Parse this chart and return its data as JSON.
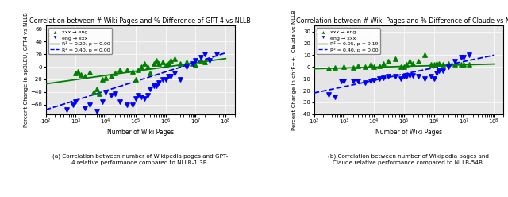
{
  "left": {
    "title": "Correlation between # Wiki Pages and % Difference of GPT-4 vs NLLB",
    "ylabel": "Percent Change in spBLEU, GPT4 vs NLLB",
    "xlabel": "Number of Wiki Pages",
    "caption_left": "(a) Correlation between number of Wikipedia pages and GPT-\n4 relative performance compared to NLLB-1.3B.",
    "xxx_eng_x": [
      1000,
      1200,
      1500,
      2000,
      3000,
      4000,
      5000,
      6000,
      8000,
      10000,
      15000,
      20000,
      30000,
      50000,
      80000,
      100000,
      120000,
      150000,
      200000,
      250000,
      300000,
      400000,
      500000,
      600000,
      800000,
      1000000,
      1200000,
      1500000,
      2000000,
      3000000,
      5000000,
      8000000,
      10000000,
      15000000,
      20000000
    ],
    "xxx_eng_y": [
      -10,
      -8,
      -12,
      -15,
      -9,
      -40,
      -35,
      -42,
      -20,
      -18,
      -15,
      -10,
      -5,
      -5,
      -8,
      -20,
      -5,
      0,
      5,
      0,
      -10,
      5,
      10,
      5,
      8,
      3,
      5,
      10,
      12,
      5,
      8,
      5,
      3,
      10,
      8
    ],
    "eng_xxx_x": [
      500,
      800,
      1000,
      2000,
      3000,
      5000,
      8000,
      10000,
      15000,
      20000,
      30000,
      50000,
      80000,
      100000,
      120000,
      150000,
      200000,
      250000,
      300000,
      400000,
      500000,
      600000,
      800000,
      1000000,
      1200000,
      1500000,
      2000000,
      3000000,
      5000000,
      8000000,
      10000000,
      15000000,
      20000000,
      30000000,
      50000000
    ],
    "eng_xxx_y": [
      -68,
      -60,
      -55,
      -65,
      -60,
      -70,
      -55,
      -40,
      -45,
      -42,
      -55,
      -60,
      -60,
      -50,
      -45,
      -48,
      -50,
      -45,
      -35,
      -30,
      -30,
      -25,
      -20,
      -20,
      -15,
      -15,
      -10,
      -20,
      0,
      5,
      10,
      15,
      20,
      10,
      20
    ],
    "green_line_x": [
      100,
      100000000
    ],
    "green_line_y": [
      -27,
      13
    ],
    "blue_line_x": [
      100,
      100000000
    ],
    "blue_line_y": [
      -68,
      22
    ],
    "green_r2": "R² = 0.29, p = 0.00",
    "blue_r2": "R² = 0.40, p = 0.00",
    "ylim": [
      -75,
      65
    ],
    "xlim": [
      100,
      200000000
    ],
    "yticks": [
      60,
      40,
      20,
      0,
      -20,
      -40,
      -60
    ]
  },
  "right": {
    "title": "Correlation between # Wiki Pages and % Difference of Claude vs NLLB",
    "ylabel": "Percent Change in chrF++, Claude vs NLLB",
    "xlabel": "Number of Wiki Pages",
    "caption_right": "(b) Correlation between number of Wikipedia pages and\nClaude relative performance compared to NLLB-54B.",
    "xxx_eng_x": [
      300,
      500,
      1000,
      2000,
      3000,
      5000,
      8000,
      10000,
      15000,
      20000,
      30000,
      50000,
      80000,
      100000,
      120000,
      150000,
      200000,
      300000,
      500000,
      800000,
      1000000,
      1200000,
      1500000,
      2000000,
      3000000,
      5000000,
      8000000,
      10000000,
      15000000
    ],
    "xxx_eng_y": [
      -1,
      -0.5,
      0,
      -0.5,
      1,
      0.5,
      2,
      0,
      1,
      3,
      5,
      7,
      0,
      0,
      2,
      5,
      3,
      5,
      10,
      2,
      2,
      3,
      3,
      2,
      3,
      2,
      2,
      2,
      2
    ],
    "eng_xxx_x": [
      300,
      500,
      800,
      1000,
      2000,
      3000,
      5000,
      8000,
      10000,
      15000,
      20000,
      30000,
      50000,
      80000,
      100000,
      120000,
      150000,
      200000,
      300000,
      500000,
      800000,
      1000000,
      1200000,
      1500000,
      2000000,
      3000000,
      5000000,
      8000000,
      10000000,
      15000000
    ],
    "eng_xxx_y": [
      -23,
      -25,
      -12,
      -12,
      -12,
      -12,
      -13,
      -12,
      -11,
      -10,
      -9,
      -8,
      -8,
      -10,
      -8,
      -8,
      -7,
      -7,
      -8,
      -10,
      -8,
      -10,
      -5,
      -3,
      -3,
      0,
      5,
      8,
      8,
      10
    ],
    "green_line_x": [
      100,
      100000000
    ],
    "green_line_y": [
      -1.5,
      2.5
    ],
    "blue_line_x": [
      100,
      100000000
    ],
    "blue_line_y": [
      -22,
      10
    ],
    "green_r2": "R² = 0.05, p = 0.19",
    "blue_r2": "R² = 0.40, p = 0.00",
    "ylim": [
      -40,
      35
    ],
    "xlim": [
      100,
      200000000
    ],
    "yticks": [
      30,
      20,
      10,
      0,
      -10,
      -20,
      -30,
      -40
    ]
  },
  "caption_left": "(a) Correlation between number of Wikipedia pages and GPT-\n4 relative performance compared to NLLB-1.3B.",
  "caption_right": "(b) Correlation between number of Wikipedia pages and\nClaude relative performance compared to NLLB-54B."
}
